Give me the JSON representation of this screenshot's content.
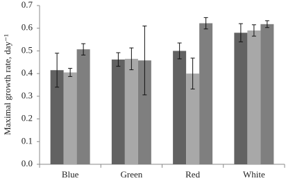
{
  "chart_data": {
    "type": "bar",
    "y_label": "Maximal growth rate, day⁻¹",
    "categories": [
      "Blue",
      "Green",
      "Red",
      "White"
    ],
    "series": [
      {
        "color": "#626262",
        "values": [
          0.415,
          0.462,
          0.5,
          0.58
        ],
        "errors": [
          0.075,
          0.03,
          0.035,
          0.04
        ]
      },
      {
        "color": "#a8a8a8",
        "values": [
          0.405,
          0.465,
          0.4,
          0.59
        ],
        "errors": [
          0.018,
          0.048,
          0.068,
          0.025
        ]
      },
      {
        "color": "#7f7f7f",
        "values": [
          0.507,
          0.458,
          0.622,
          0.618
        ],
        "errors": [
          0.025,
          0.152,
          0.025,
          0.015
        ]
      }
    ],
    "ylim": [
      0,
      0.7
    ],
    "yticks": [
      {
        "value": 0,
        "label": "0.0"
      },
      0.1,
      0.2,
      0.3,
      0.4,
      0.5,
      0.6,
      0.7
    ]
  }
}
